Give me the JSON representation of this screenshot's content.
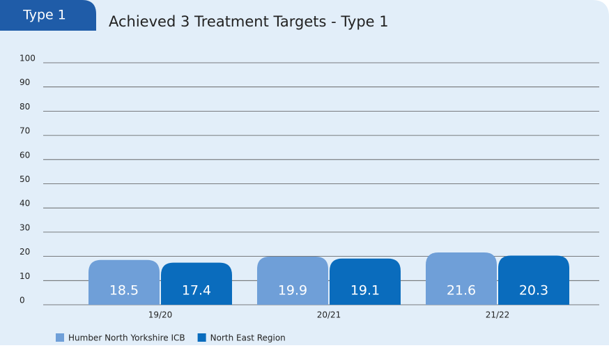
{
  "chart_data": {
    "type": "bar",
    "tab": "Type 1",
    "title": "Achieved 3 Treatment Targets - Type 1",
    "categories": [
      "19/20",
      "20/21",
      "21/22"
    ],
    "series": [
      {
        "name": "Humber North Yorkshire ICB",
        "color": "#6f9fd8",
        "values": [
          18.5,
          19.9,
          21.6
        ]
      },
      {
        "name": "North East Region",
        "color": "#0a6cbd",
        "values": [
          17.4,
          19.1,
          20.3
        ]
      }
    ],
    "ylim": [
      0,
      100
    ],
    "yticks": [
      0,
      10,
      20,
      30,
      40,
      50,
      60,
      70,
      80,
      90,
      100
    ],
    "grid": true
  }
}
